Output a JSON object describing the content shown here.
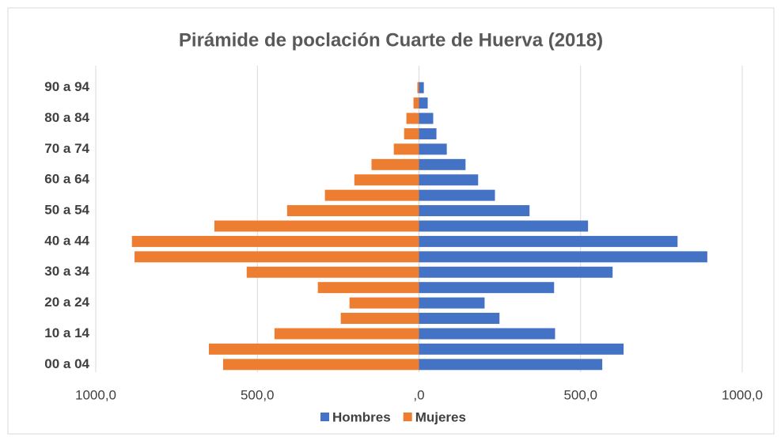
{
  "chart_data": {
    "type": "bar",
    "orientation": "horizontal",
    "stacked": true,
    "title": "Pirámide de poclación Cuarte de Huerva (2018)",
    "categories": [
      "00 a 04",
      null,
      "10 a 14",
      null,
      "20 a 24",
      null,
      "30 a 34",
      null,
      "40 a 44",
      null,
      "50 a 54",
      null,
      "60 a 64",
      null,
      "70 a 74",
      null,
      "80 a 84",
      null,
      "90 a 94"
    ],
    "series": [
      {
        "name": "Hombres",
        "color": "#4472c4",
        "values": [
          567,
          633,
          421,
          249,
          203,
          418,
          599,
          892,
          800,
          523,
          342,
          235,
          183,
          144,
          86,
          54,
          44,
          27,
          15
        ]
      },
      {
        "name": "Mujeres",
        "color": "#ed7d31",
        "values": [
          -606,
          -650,
          -447,
          -242,
          -215,
          -313,
          -533,
          -880,
          -888,
          -633,
          -408,
          -291,
          -200,
          -147,
          -78,
          -46,
          -39,
          -17,
          -5
        ]
      }
    ],
    "xlim": [
      -1000,
      1000
    ],
    "xticks": [
      {
        "value": -1000,
        "label": "1000,0"
      },
      {
        "value": -500,
        "label": "500,0"
      },
      {
        "value": 0,
        "label": ",0"
      },
      {
        "value": 500,
        "label": "500,0"
      },
      {
        "value": 1000,
        "label": "1000,0"
      }
    ],
    "grid": true,
    "legend": "bottom"
  }
}
